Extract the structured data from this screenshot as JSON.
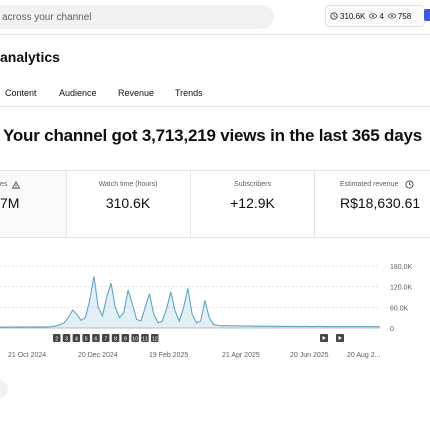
{
  "search": {
    "placeholder": "across your channel"
  },
  "header_stats": [
    {
      "icon": "clock-icon",
      "value": "310.6K"
    },
    {
      "icon": "eye-icon",
      "value": "4"
    },
    {
      "icon": "views-icon",
      "value": "758"
    }
  ],
  "page": {
    "title": "analytics"
  },
  "tabs": [
    {
      "label": "Content"
    },
    {
      "label": "Audience"
    },
    {
      "label": "Revenue"
    },
    {
      "label": "Trends"
    }
  ],
  "headline": "Your channel got 3,713,219 views in the last 365 days",
  "cards": [
    {
      "label": "es",
      "value": "7M",
      "has_info_icon": true
    },
    {
      "label": "Watch time (hours)",
      "value": "310.6K"
    },
    {
      "label": "Subscribers",
      "value": "+12.9K"
    },
    {
      "label": "Estimated revenue",
      "value": "R$18,630.61"
    }
  ],
  "chart_data": {
    "type": "area",
    "y_tick_labels": [
      "180.0K",
      "120.0K",
      "60.0K",
      "0"
    ],
    "ylim": [
      0,
      180000
    ],
    "x_tick_labels": [
      "21 Oct 2024",
      "20 Dec 2024",
      "19 Feb 2025",
      "21 Apr 2025",
      "20 Jun 2025",
      "20 Aug 2..."
    ],
    "marker_numbers": [
      "2",
      "3",
      "4",
      "5",
      "6",
      "7",
      "8",
      "9",
      "10",
      "11",
      "12"
    ],
    "values": [
      3000,
      2500,
      2800,
      2600,
      3000,
      2700,
      3200,
      2900,
      3100,
      2800,
      3300,
      3000,
      4000,
      6000,
      9000,
      15000,
      30000,
      52000,
      40000,
      22000,
      30000,
      80000,
      150000,
      60000,
      35000,
      90000,
      130000,
      60000,
      30000,
      45000,
      110000,
      70000,
      25000,
      20000,
      60000,
      100000,
      40000,
      15000,
      20000,
      55000,
      105000,
      50000,
      20000,
      60000,
      115000,
      40000,
      15000,
      20000,
      80000,
      30000,
      10000,
      8000,
      6000,
      7000,
      6000,
      6500,
      6000,
      5500,
      6000,
      5500,
      5000,
      5200,
      5000,
      4800,
      5000,
      4800,
      4600,
      4800,
      4500,
      4700,
      4500,
      4400,
      4600,
      4300,
      4500,
      4400,
      4300,
      4200,
      4300,
      4100,
      4200,
      4300,
      4100,
      4000,
      4200,
      4000,
      4100,
      4000,
      3900,
      4000
    ],
    "color": "#5fa5c6"
  }
}
